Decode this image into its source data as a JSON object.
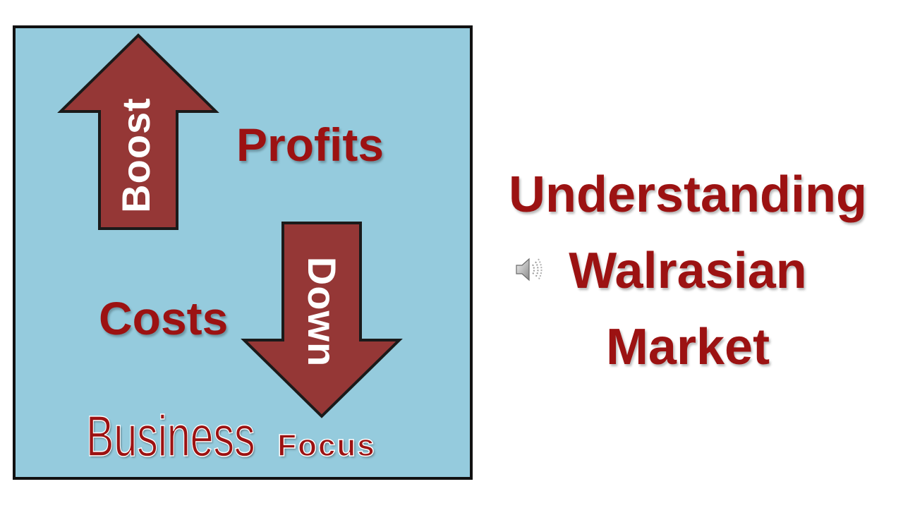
{
  "logo": {
    "arrow_up_word": "Boost",
    "profits": "Profits",
    "arrow_down_word": "Down",
    "costs": "Costs",
    "business": "Business",
    "focus": "Focus",
    "colors": {
      "background": "#95cbdd",
      "arrow": "#953736",
      "text_red": "#9c1212",
      "border": "#111111"
    }
  },
  "title": {
    "line1": "Understanding",
    "line2": "Walrasian",
    "line3": "Market"
  },
  "speaker": {
    "icon": "speaker-icon"
  }
}
